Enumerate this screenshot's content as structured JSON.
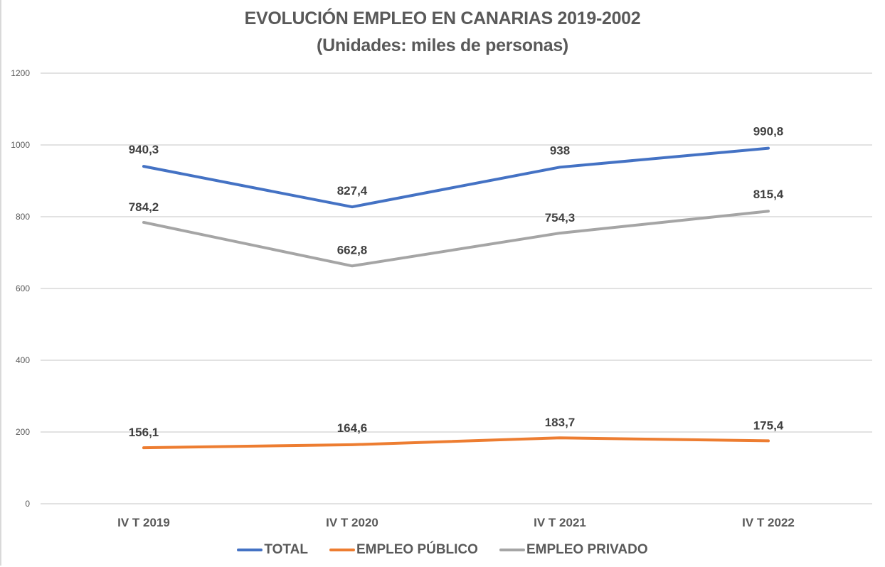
{
  "chart_data": {
    "type": "line",
    "title": "EVOLUCIÓN EMPLEO EN CANARIAS 2019-2002",
    "subtitle": "(Unidades: miles de personas)",
    "xlabel": "",
    "ylabel": "",
    "categories": [
      "IV T 2019",
      "IV T 2020",
      "IV T 2021",
      "IV T 2022"
    ],
    "ylim": [
      0,
      1200
    ],
    "yticks": [
      0,
      200,
      400,
      600,
      800,
      1000,
      1200
    ],
    "grid": true,
    "legend_position": "bottom",
    "series": [
      {
        "name": "TOTAL",
        "color": "#4472c4",
        "values": [
          940.3,
          827.4,
          938,
          990.8
        ],
        "labels": [
          "940,3",
          "827,4",
          "938",
          "990,8"
        ]
      },
      {
        "name": "EMPLEO PÚBLICO",
        "color": "#ed7d31",
        "values": [
          156.1,
          164.6,
          183.7,
          175.4
        ],
        "labels": [
          "156,1",
          "164,6",
          "183,7",
          "175,4"
        ]
      },
      {
        "name": "EMPLEO PRIVADO",
        "color": "#a5a5a5",
        "values": [
          784.2,
          662.8,
          754.3,
          815.4
        ],
        "labels": [
          "784,2",
          "662,8",
          "754,3",
          "815,4"
        ]
      }
    ]
  }
}
